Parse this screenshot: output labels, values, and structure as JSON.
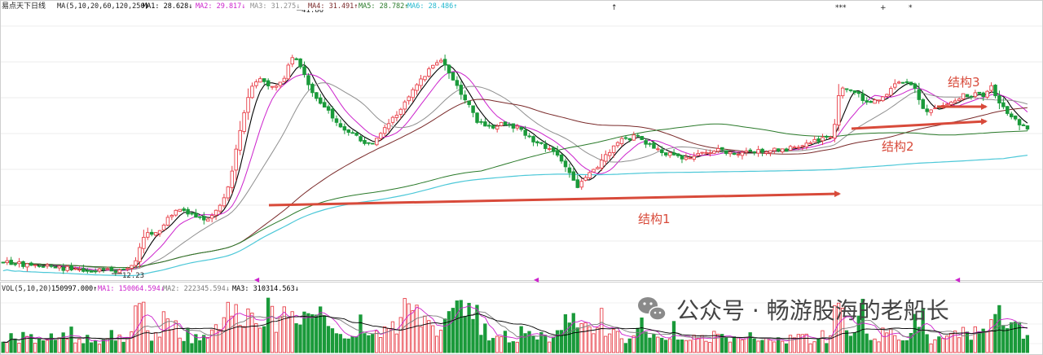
{
  "price_panel": {
    "title": "易点天下日线",
    "ma_header": "MA(5,10,20,60,120,250)",
    "ma_items": [
      {
        "label": "MA1: 28.628↓",
        "color": "#000000"
      },
      {
        "label": "MA2: 29.817↓",
        "color": "#cc22cc"
      },
      {
        "label": "MA3: 31.275↓",
        "color": "#8f8f8f"
      },
      {
        "label": "MA4: 31.491↑",
        "color": "#7a2a2a"
      },
      {
        "label": "MA5: 28.782↑",
        "color": "#2a7a2a"
      },
      {
        "label": "MA6: 28.486↑",
        "color": "#22b8cf"
      }
    ],
    "high_label": "41.86",
    "low_label": "12.23",
    "annotations": {
      "structure1": "结构1",
      "structure2": "结构2",
      "structure3": "结构3"
    }
  },
  "volume_panel": {
    "header": "VOL(5,10,20)",
    "items": [
      {
        "label": "150997.000↑",
        "color": "#000000"
      },
      {
        "label": "MA1: 150064.594↓",
        "color": "#cc22cc"
      },
      {
        "label": "MA2: 222345.594↓",
        "color": "#7a7a7a"
      },
      {
        "label": "MA3: 310314.563↓",
        "color": "#000000"
      }
    ]
  },
  "watermark": {
    "text": "公众号 · 畅游股海的老船长"
  },
  "colors": {
    "up": "#e8414a",
    "down": "#1a9a3a",
    "arrow": "#d84a3a",
    "ma120": "#2a7a2a",
    "ma250": "#4dc8d8"
  },
  "chart_data": {
    "type": "candlestick",
    "price": {
      "high": 41.86,
      "low": 12.23
    },
    "moving_averages": {
      "MA1": 28.628,
      "MA2": 29.817,
      "MA3": 31.275,
      "MA4": 31.491,
      "MA5": 28.782,
      "MA6": 28.486
    },
    "volume": {
      "VOL": 150997.0,
      "MA1": 150064.594,
      "MA2": 222345.594,
      "MA3": 310314.563
    }
  }
}
